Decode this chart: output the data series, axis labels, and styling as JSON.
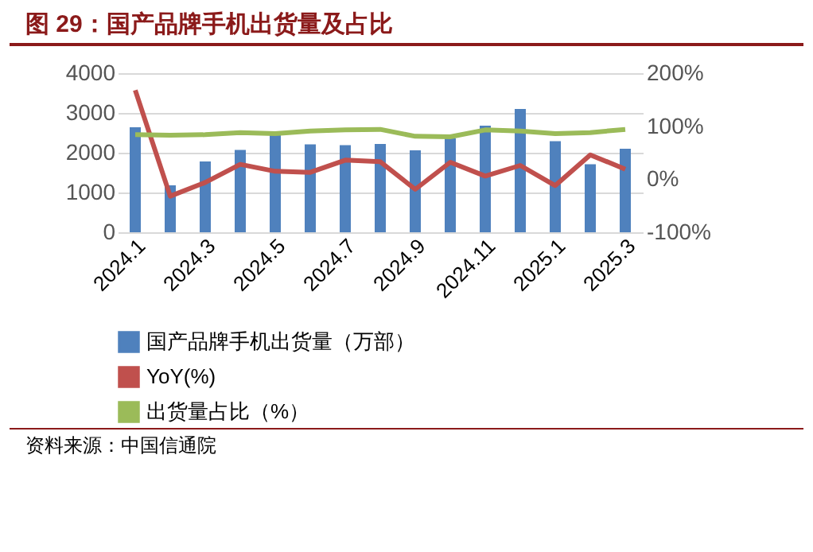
{
  "chart_data": {
    "type": "bar",
    "title": "图 29：国产品牌手机出货量及占比",
    "categories": [
      "2024.1",
      null,
      "2024.3",
      null,
      "2024.5",
      null,
      "2024.7",
      null,
      "2024.9",
      null,
      "2024.11",
      null,
      "2025.1",
      null,
      "2025.3"
    ],
    "series": [
      {
        "name": "国产品牌手机出货量（万部）",
        "color": "#4f81bd",
        "values": [
          2640,
          1180,
          1780,
          2070,
          2540,
          2210,
          2190,
          2220,
          2060,
          2360,
          2680,
          3100,
          2290,
          1710,
          2100
        ]
      },
      {
        "name": "YoY(%)",
        "type": "line",
        "axis": "y2",
        "color": "#c0504d",
        "values": [
          168,
          -32,
          -6,
          28,
          15,
          13,
          36,
          33,
          -19,
          32,
          6,
          26,
          -12,
          46,
          19
        ]
      },
      {
        "name": "出货量占比（%）",
        "type": "line",
        "axis": "y2",
        "color": "#9bbb59",
        "values": [
          84,
          83,
          84,
          88,
          86,
          91,
          93,
          94,
          81,
          80,
          93,
          91,
          86,
          88,
          94
        ]
      }
    ],
    "ylim": [
      0,
      4000
    ],
    "yticks": [
      0,
      1000,
      2000,
      3000,
      4000
    ],
    "y2lim": [
      -100,
      200
    ],
    "y2ticks": [
      {
        "value": -100,
        "label": "-100%"
      },
      {
        "value": 0,
        "label": "0%"
      },
      {
        "value": 100,
        "label": "100%"
      },
      {
        "value": 200,
        "label": "200%"
      }
    ],
    "grid": "y",
    "legend": "bottom",
    "annotations": [
      "资料来源：中国信通院"
    ]
  }
}
